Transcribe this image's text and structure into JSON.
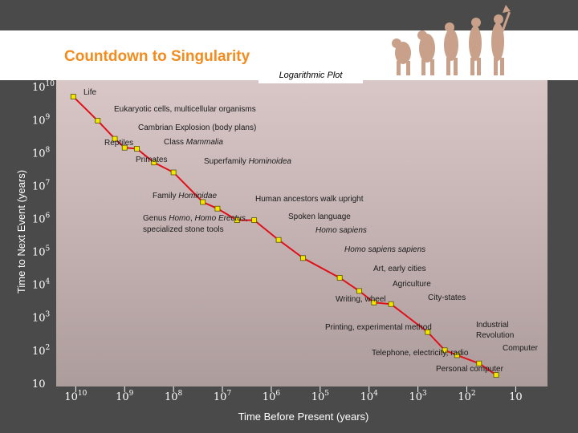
{
  "header": {
    "title": "Countdown to Singularity"
  },
  "colors": {
    "background": "#4a4a4a",
    "title": "#f28c1e",
    "line": "#e0101a",
    "marker_fill": "#f5e600",
    "axis_text": "#ffffff",
    "label_text": "#1a1a1a"
  },
  "chart_data": {
    "type": "line",
    "title": "Countdown to Singularity",
    "subtitle": "Logarithmic Plot",
    "xlabel": "Time Before Present (years)",
    "ylabel": "Time to Next Event (years)",
    "x_scale": "log-reversed",
    "y_scale": "log",
    "xlim_exponent": [
      10.4,
      0.35
    ],
    "ylim_exponent": [
      0.9,
      10.2
    ],
    "x_ticks": [
      {
        "exp": 10,
        "label": "10",
        "sup": "10"
      },
      {
        "exp": 9,
        "label": "10",
        "sup": "9"
      },
      {
        "exp": 8,
        "label": "10",
        "sup": "8"
      },
      {
        "exp": 7,
        "label": "10",
        "sup": "7"
      },
      {
        "exp": 6,
        "label": "10",
        "sup": "6"
      },
      {
        "exp": 5,
        "label": "10",
        "sup": "5"
      },
      {
        "exp": 4,
        "label": "10",
        "sup": "4"
      },
      {
        "exp": 3,
        "label": "10",
        "sup": "3"
      },
      {
        "exp": 2,
        "label": "10",
        "sup": "2"
      },
      {
        "exp": 1,
        "label": "10",
        "sup": ""
      }
    ],
    "y_ticks": [
      {
        "exp": 10,
        "label": "10",
        "sup": "10"
      },
      {
        "exp": 9,
        "label": "10",
        "sup": "9"
      },
      {
        "exp": 8,
        "label": "10",
        "sup": "8"
      },
      {
        "exp": 7,
        "label": "10",
        "sup": "7"
      },
      {
        "exp": 6,
        "label": "10",
        "sup": "6"
      },
      {
        "exp": 5,
        "label": "10",
        "sup": "5"
      },
      {
        "exp": 4,
        "label": "10",
        "sup": "4"
      },
      {
        "exp": 3,
        "label": "10",
        "sup": "3"
      },
      {
        "exp": 2,
        "label": "10",
        "sup": "2"
      },
      {
        "exp": 1,
        "label": "10",
        "sup": ""
      }
    ],
    "points": [
      {
        "x_exp": 10.05,
        "y_exp": 9.7
      },
      {
        "x_exp": 9.55,
        "y_exp": 8.97
      },
      {
        "x_exp": 9.2,
        "y_exp": 8.42
      },
      {
        "x_exp": 9.0,
        "y_exp": 8.15
      },
      {
        "x_exp": 8.75,
        "y_exp": 8.12
      },
      {
        "x_exp": 8.4,
        "y_exp": 7.7
      },
      {
        "x_exp": 8.0,
        "y_exp": 7.4
      },
      {
        "x_exp": 7.4,
        "y_exp": 6.5
      },
      {
        "x_exp": 7.1,
        "y_exp": 6.3
      },
      {
        "x_exp": 6.7,
        "y_exp": 5.95
      },
      {
        "x_exp": 6.35,
        "y_exp": 5.95
      },
      {
        "x_exp": 5.85,
        "y_exp": 5.35
      },
      {
        "x_exp": 5.35,
        "y_exp": 4.8
      },
      {
        "x_exp": 4.6,
        "y_exp": 4.2
      },
      {
        "x_exp": 4.2,
        "y_exp": 3.8
      },
      {
        "x_exp": 3.9,
        "y_exp": 3.45
      },
      {
        "x_exp": 3.55,
        "y_exp": 3.4
      },
      {
        "x_exp": 2.8,
        "y_exp": 2.55
      },
      {
        "x_exp": 2.45,
        "y_exp": 2.0
      },
      {
        "x_exp": 2.2,
        "y_exp": 1.85
      },
      {
        "x_exp": 1.75,
        "y_exp": 1.6
      },
      {
        "x_exp": 1.4,
        "y_exp": 1.25
      }
    ],
    "annotations": [
      {
        "segs": [
          {
            "t": "Life"
          }
        ],
        "x": 104,
        "y": 118,
        "anchor": "start"
      },
      {
        "segs": [
          {
            "t": "Eukaryotic cells, multicellular organisms"
          }
        ],
        "x": 142,
        "y": 139,
        "anchor": "start"
      },
      {
        "segs": [
          {
            "t": "Cambrian Explosion (body plans)"
          }
        ],
        "x": 172,
        "y": 162,
        "anchor": "start"
      },
      {
        "segs": [
          {
            "t": "Reptiles"
          }
        ],
        "x": 130,
        "y": 181,
        "anchor": "start"
      },
      {
        "segs": [
          {
            "t": "Class "
          },
          {
            "t": "Mammalia",
            "i": true
          }
        ],
        "x": 204,
        "y": 180,
        "anchor": "start"
      },
      {
        "segs": [
          {
            "t": "Primates"
          }
        ],
        "x": 169,
        "y": 202,
        "anchor": "start"
      },
      {
        "segs": [
          {
            "t": "Superfamily "
          },
          {
            "t": "Hominoidea",
            "i": true
          }
        ],
        "x": 254,
        "y": 204,
        "anchor": "start"
      },
      {
        "segs": [
          {
            "t": "Family "
          },
          {
            "t": "Hominidae",
            "i": true
          }
        ],
        "x": 190,
        "y": 247,
        "anchor": "start"
      },
      {
        "segs": [
          {
            "t": "Human ancestors walk upright"
          }
        ],
        "x": 318,
        "y": 251,
        "anchor": "start"
      },
      {
        "segs": [
          {
            "t": "Genus "
          },
          {
            "t": "Homo",
            "i": true
          },
          {
            "t": ", "
          },
          {
            "t": "Homo Erectus",
            "i": true
          },
          {
            "t": ","
          }
        ],
        "x": 178,
        "y": 275,
        "anchor": "start"
      },
      {
        "segs": [
          {
            "t": "specialized stone tools"
          }
        ],
        "x": 178,
        "y": 289,
        "anchor": "start"
      },
      {
        "segs": [
          {
            "t": "Spoken language"
          }
        ],
        "x": 359,
        "y": 273,
        "anchor": "start"
      },
      {
        "segs": [
          {
            "t": "Homo sapiens",
            "i": true
          }
        ],
        "x": 393,
        "y": 290,
        "anchor": "start"
      },
      {
        "segs": [
          {
            "t": "Homo sapiens sapiens",
            "i": true
          }
        ],
        "x": 429,
        "y": 314,
        "anchor": "start"
      },
      {
        "segs": [
          {
            "t": "Art, early cities"
          }
        ],
        "x": 465,
        "y": 338,
        "anchor": "start"
      },
      {
        "segs": [
          {
            "t": "Agriculture"
          }
        ],
        "x": 489,
        "y": 357,
        "anchor": "start"
      },
      {
        "segs": [
          {
            "t": "Writing, wheel"
          }
        ],
        "x": 418,
        "y": 376,
        "anchor": "start"
      },
      {
        "segs": [
          {
            "t": "City-states"
          }
        ],
        "x": 533,
        "y": 374,
        "anchor": "start"
      },
      {
        "segs": [
          {
            "t": "Printing, experimental method"
          }
        ],
        "x": 405,
        "y": 411,
        "anchor": "start"
      },
      {
        "segs": [
          {
            "t": "Industrial"
          }
        ],
        "x": 593,
        "y": 408,
        "anchor": "start"
      },
      {
        "segs": [
          {
            "t": "Revolution"
          }
        ],
        "x": 593,
        "y": 421,
        "anchor": "start"
      },
      {
        "segs": [
          {
            "t": "Computer"
          }
        ],
        "x": 626,
        "y": 437,
        "anchor": "start"
      },
      {
        "segs": [
          {
            "t": "Telephone, electricity, radio"
          }
        ],
        "x": 463,
        "y": 443,
        "anchor": "start"
      },
      {
        "segs": [
          {
            "t": "Personal computer"
          }
        ],
        "x": 543,
        "y": 463,
        "anchor": "start"
      }
    ]
  }
}
